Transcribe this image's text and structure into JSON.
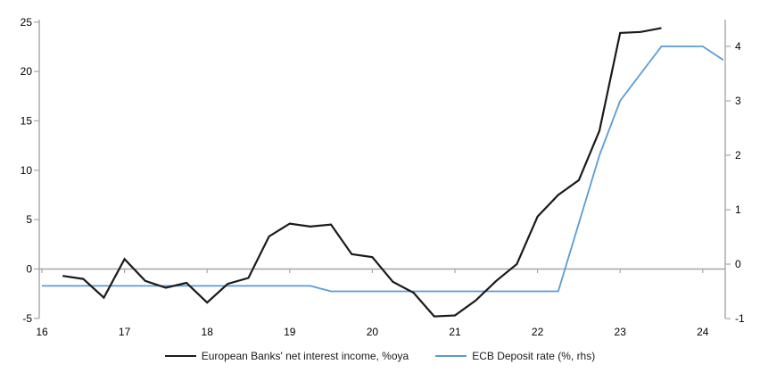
{
  "chart_data": {
    "type": "line",
    "title": "",
    "x_axis": {
      "years": [
        16,
        17,
        18,
        19,
        20,
        21,
        22,
        23,
        24
      ],
      "tick_labels": [
        "16",
        "17",
        "18",
        "19",
        "20",
        "21",
        "22",
        "23",
        "24"
      ],
      "range": [
        16,
        24.3
      ]
    },
    "left_axis": {
      "ticks": [
        -5,
        0,
        5,
        10,
        15,
        20,
        25
      ],
      "tick_labels": [
        "-5",
        "0",
        "5",
        "10",
        "15",
        "20",
        "25"
      ],
      "range": [
        -5,
        25.2
      ]
    },
    "right_axis": {
      "ticks": [
        -1,
        0,
        1,
        2,
        3,
        4
      ],
      "tick_labels": [
        "-1",
        "0",
        "1",
        "2",
        "3",
        "4"
      ],
      "range": [
        -1,
        4.5
      ]
    },
    "grid": false,
    "zero_line": true,
    "legend_position": "bottom",
    "series": [
      {
        "name": "European Banks' net interest income, %oya",
        "axis": "left",
        "color": "#1a1a1a",
        "stroke_width": 2.2,
        "x": [
          16.25,
          16.5,
          16.75,
          17.0,
          17.25,
          17.5,
          17.75,
          18.0,
          18.25,
          18.5,
          18.75,
          19.0,
          19.25,
          19.5,
          19.75,
          20.0,
          20.25,
          20.5,
          20.75,
          21.0,
          21.25,
          21.5,
          21.75,
          22.0,
          22.25,
          22.5,
          22.75,
          23.0,
          23.25,
          23.5
        ],
        "values": [
          -0.7,
          -1.0,
          -2.9,
          1.0,
          -1.2,
          -1.9,
          -1.4,
          -3.4,
          -1.5,
          -0.9,
          3.3,
          4.6,
          4.3,
          4.5,
          1.5,
          1.2,
          -1.3,
          -2.4,
          -4.8,
          -4.7,
          -3.2,
          -1.2,
          0.5,
          5.3,
          7.5,
          9.0,
          14.0,
          23.9,
          24.0,
          24.4
        ]
      },
      {
        "name": "ECB Deposit rate (%, rhs)",
        "axis": "right",
        "color": "#5b9bd5",
        "stroke_width": 1.8,
        "x": [
          16.0,
          16.25,
          16.5,
          16.75,
          17.0,
          17.25,
          17.5,
          17.75,
          18.0,
          18.25,
          18.5,
          18.75,
          19.0,
          19.25,
          19.5,
          19.75,
          20.0,
          20.25,
          20.5,
          20.75,
          21.0,
          21.25,
          21.5,
          21.75,
          22.0,
          22.25,
          22.5,
          22.75,
          23.0,
          23.25,
          23.5,
          23.75,
          24.0,
          24.25
        ],
        "values": [
          -0.4,
          -0.4,
          -0.4,
          -0.4,
          -0.4,
          -0.4,
          -0.4,
          -0.4,
          -0.4,
          -0.4,
          -0.4,
          -0.4,
          -0.4,
          -0.4,
          -0.5,
          -0.5,
          -0.5,
          -0.5,
          -0.5,
          -0.5,
          -0.5,
          -0.5,
          -0.5,
          -0.5,
          -0.5,
          -0.5,
          0.75,
          2.0,
          3.0,
          3.5,
          4.0,
          4.0,
          4.0,
          3.75
        ]
      }
    ]
  },
  "legend": {
    "series1_label": "European Banks' net interest income, %oya",
    "series2_label": "ECB Deposit rate (%, rhs)"
  },
  "colors": {
    "nii_line": "#1a1a1a",
    "ecb_line": "#5b9bd5",
    "axis": "#a6a6a6",
    "text": "#000000"
  }
}
